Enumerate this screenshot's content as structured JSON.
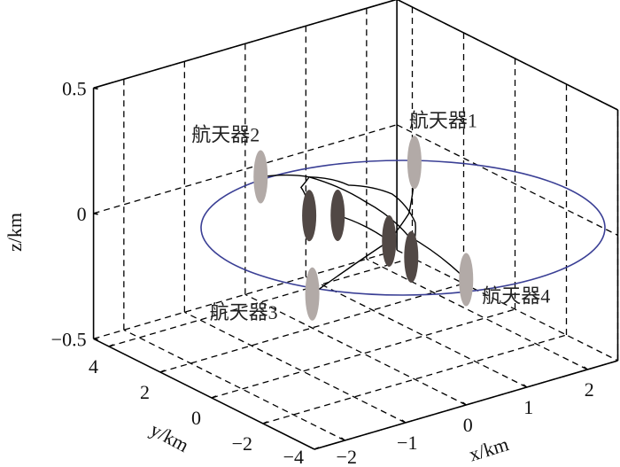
{
  "chart_data": {
    "type": "scatter3d",
    "xlabel": "x/km",
    "ylabel": "y/km",
    "zlabel": "z/km",
    "xlim": [
      -2.5,
      2.5
    ],
    "ylim": [
      -4,
      4.6
    ],
    "zlim": [
      -0.5,
      0.5
    ],
    "xticks": [
      "−2",
      "−1",
      "0",
      "1",
      "2"
    ],
    "xtick_values": [
      -2,
      -1,
      0,
      1,
      2
    ],
    "yticks": [
      "−4",
      "−2",
      "0",
      "2",
      "4"
    ],
    "ytick_values": [
      -4,
      -2,
      0,
      2,
      4
    ],
    "zticks": [
      "−0.5",
      "0",
      "0.5"
    ],
    "ztick_values": [
      -0.5,
      0,
      0.5
    ],
    "grid": true,
    "colors": {
      "reference_circle": "#3a3f95",
      "outer_spacecraft": "#b2aaa7",
      "inner_spacecraft": "#514845",
      "trajectory": "#000000"
    },
    "outer_spacecraft": [
      {
        "label": "航天器1",
        "x": 1.9,
        "y": 2.5,
        "z": 0
      },
      {
        "label": "航天器2",
        "x": 0,
        "y": 4,
        "z": 0
      },
      {
        "label": "航天器3",
        "x": -1.9,
        "y": -2.5,
        "z": 0
      },
      {
        "label": "航天器4",
        "x": 0,
        "y": -4,
        "z": 0
      }
    ],
    "inner_spacecraft": [
      {
        "x": -0.3,
        "y": 1.4,
        "z": 0
      },
      {
        "x": 0,
        "y": 1,
        "z": 0
      },
      {
        "x": 0,
        "y": -1,
        "z": 0
      },
      {
        "x": -0.1,
        "y": -2.1,
        "z": 0
      }
    ],
    "trajectories": [
      [
        [
          0,
          4
        ],
        [
          0.5,
          3.3
        ],
        [
          0.2,
          2.9
        ],
        [
          -0.3,
          1.4
        ]
      ],
      [
        [
          0.5,
          3.3
        ],
        [
          0.57,
          1.24
        ],
        [
          0.31,
          -1.01
        ],
        [
          0,
          -4
        ]
      ],
      [
        [
          0.5,
          3.3
        ],
        [
          0.74,
          2.33
        ],
        [
          1.01,
          1.26
        ],
        [
          0.66,
          -0.46
        ],
        [
          -0.1,
          -2.1
        ]
      ],
      [
        [
          1.9,
          2.5
        ],
        [
          0.78,
          0.07
        ],
        [
          0,
          -1
        ]
      ],
      [
        [
          0,
          1
        ],
        [
          0,
          -1
        ]
      ],
      [
        [
          0,
          -1
        ],
        [
          -1.9,
          -2.5
        ]
      ]
    ]
  }
}
